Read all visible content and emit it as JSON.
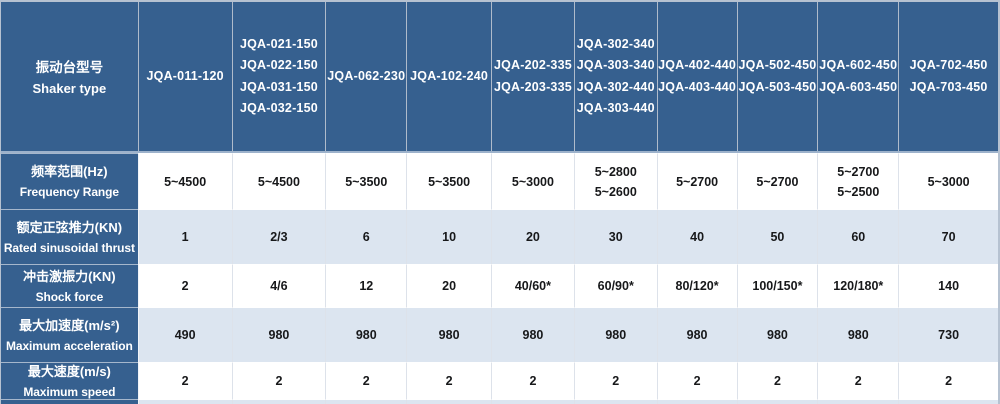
{
  "table": {
    "header": {
      "label_zh": "振动台型号",
      "label_en": "Shaker type",
      "columns": [
        {
          "models": [
            "JQA-011-120"
          ]
        },
        {
          "models": [
            "JQA-021-150",
            "JQA-022-150",
            "JQA-031-150",
            "JQA-032-150"
          ]
        },
        {
          "models": [
            "JQA-062-230"
          ]
        },
        {
          "models": [
            "JQA-102-240"
          ]
        },
        {
          "models": [
            "JQA-202-335",
            "JQA-203-335"
          ]
        },
        {
          "models": [
            "JQA-302-340",
            "JQA-303-340",
            "JQA-302-440",
            "JQA-303-440"
          ]
        },
        {
          "models": [
            "JQA-402-440",
            "JQA-403-440"
          ]
        },
        {
          "models": [
            "JQA-502-450",
            "JQA-503-450"
          ]
        },
        {
          "models": [
            "JQA-602-450",
            "JQA-603-450"
          ]
        },
        {
          "models": [
            "JQA-702-450",
            "JQA-703-450"
          ]
        }
      ]
    },
    "rows": [
      {
        "label_zh": "频率范围(Hz)",
        "label_en": "Frequency Range",
        "values": [
          "5~4500",
          "5~4500",
          "5~3500",
          "5~3500",
          "5~3000",
          "5~2800\n5~2600",
          "5~2700",
          "5~2700",
          "5~2700\n5~2500",
          "5~3000"
        ]
      },
      {
        "label_zh": "额定正弦推力(KN)",
        "label_en": "Rated sinusoidal thrust",
        "values": [
          "1",
          "2/3",
          "6",
          "10",
          "20",
          "30",
          "40",
          "50",
          "60",
          "70"
        ]
      },
      {
        "label_zh": "冲击激振力(KN)",
        "label_en": "Shock force",
        "values": [
          "2",
          "4/6",
          "12",
          "20",
          "40/60*",
          "60/90*",
          "80/120*",
          "100/150*",
          "120/180*",
          "140"
        ]
      },
      {
        "label_zh": "最大加速度(m/s²)",
        "label_en": "Maximum acceleration",
        "values": [
          "490",
          "980",
          "980",
          "980",
          "980",
          "980",
          "980",
          "980",
          "980",
          "730"
        ]
      },
      {
        "label_zh": "最大速度(m/s)",
        "label_en": "Maximum speed",
        "values": [
          "2",
          "2",
          "2",
          "2",
          "2",
          "2",
          "2",
          "2",
          "2",
          "2"
        ]
      }
    ],
    "colors": {
      "header_bg": "#36608F",
      "header_text": "#FFFFFF",
      "row_bg": "#FFFFFF",
      "alt_row_bg": "#DCE5F0",
      "data_text": "#17181A",
      "outer_border": "#B6C2D1",
      "header_vline": "#AFBBCB",
      "header_sep": "#9DB2CB",
      "label_hline": "#A6B7CC",
      "data_vline": "#DDE2EA"
    }
  }
}
